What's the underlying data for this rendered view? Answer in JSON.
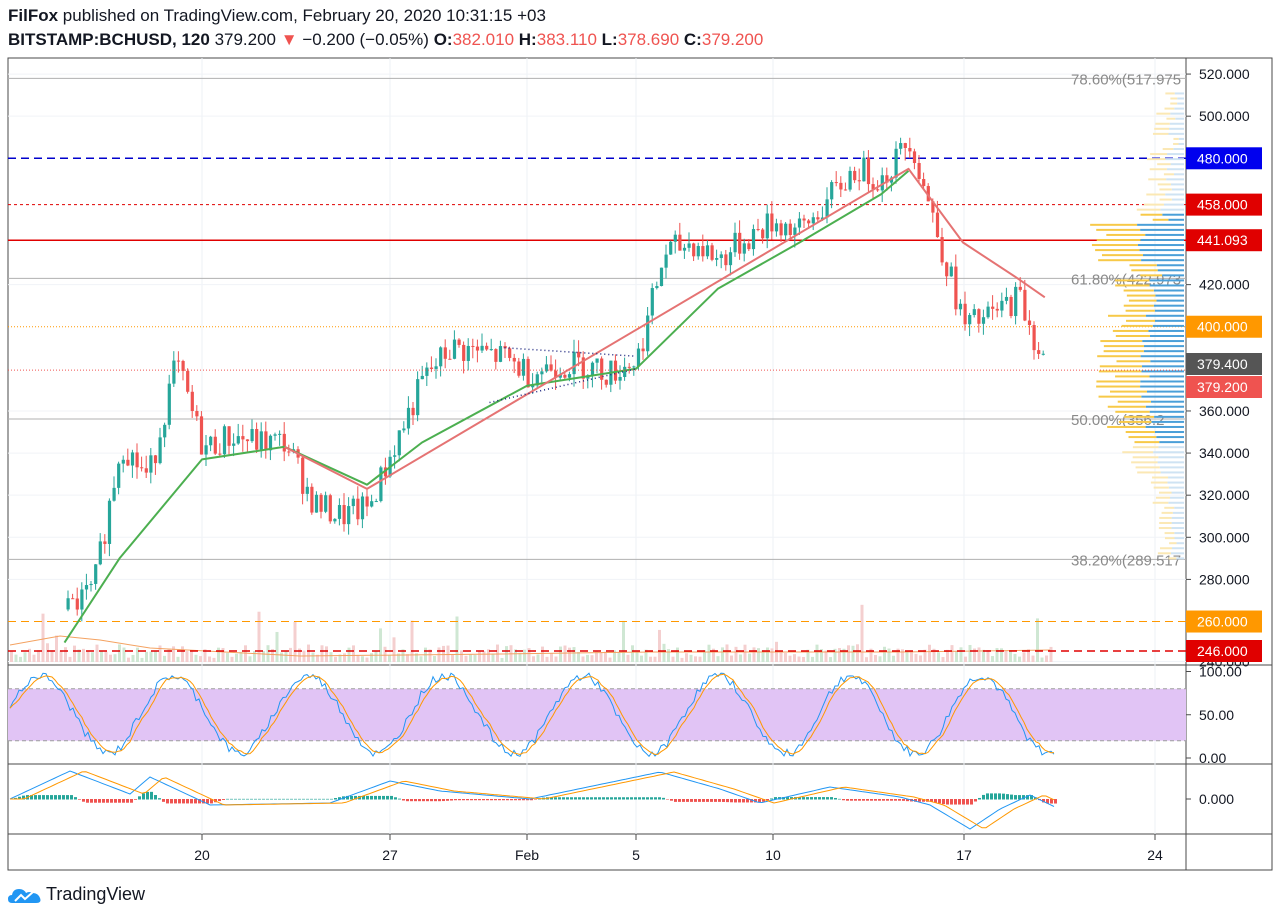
{
  "header": {
    "publisher": "FilFox",
    "published_text": "published on TradingView.com, February 20, 2020 10:31:15 +03",
    "symbol": "BITSTAMP:BCHUSD, 120",
    "last": "379.200",
    "change": "−0.200 (−0.05%)",
    "o_label": "O:",
    "o": "382.010",
    "h_label": "H:",
    "h": "383.110",
    "l_label": "L:",
    "l": "378.690",
    "c_label": "C:",
    "c": "379.200"
  },
  "brand": "TradingView",
  "colors": {
    "up": "#26a69a",
    "down": "#ef5350",
    "ma_green": "#4caf50",
    "ma_red": "#e57373",
    "blue_line": "#0000cc",
    "red_line": "#e00000",
    "orange": "#ff9800",
    "stoch_band": "#e1c4f5"
  },
  "chart_data": [
    {
      "type": "candlestick",
      "title": "BITSTAMP:BCHUSD, 120",
      "y_ticks": [
        "520.000",
        "500.000",
        "480.000",
        "458.000",
        "441.093",
        "420.000",
        "400.000",
        "379.400",
        "379.200",
        "360.000",
        "340.000",
        "320.000",
        "300.000",
        "280.000",
        "260.000",
        "246.000",
        "240.000"
      ],
      "ylim": [
        240,
        525
      ],
      "x_ticks": [
        "20",
        "27",
        "Feb",
        "5",
        "10",
        "17",
        "24"
      ],
      "price_path": [
        {
          "t": "Jan 15",
          "p": 265
        },
        {
          "t": "Jan 16",
          "p": 275
        },
        {
          "t": "Jan 17",
          "p": 345
        },
        {
          "t": "Jan 18",
          "p": 328
        },
        {
          "t": "Jan 19",
          "p": 383
        },
        {
          "t": "Jan 20",
          "p": 342
        },
        {
          "t": "Jan 21",
          "p": 348
        },
        {
          "t": "Jan 22",
          "p": 345
        },
        {
          "t": "Jan 23",
          "p": 345
        },
        {
          "t": "Jan 24",
          "p": 316
        },
        {
          "t": "Jan 25",
          "p": 310
        },
        {
          "t": "Jan 26",
          "p": 314
        },
        {
          "t": "Jan 27",
          "p": 345
        },
        {
          "t": "Jan 28",
          "p": 375
        },
        {
          "t": "Jan 29",
          "p": 390
        },
        {
          "t": "Jan 30",
          "p": 388
        },
        {
          "t": "Jan 31",
          "p": 385
        },
        {
          "t": "Feb 1",
          "p": 378
        },
        {
          "t": "Feb 2",
          "p": 382
        },
        {
          "t": "Feb 3",
          "p": 382
        },
        {
          "t": "Feb 4",
          "p": 378
        },
        {
          "t": "Feb 5",
          "p": 385
        },
        {
          "t": "Feb 6",
          "p": 435
        },
        {
          "t": "Feb 7",
          "p": 440
        },
        {
          "t": "Feb 8",
          "p": 432
        },
        {
          "t": "Feb 9",
          "p": 442
        },
        {
          "t": "Feb 10",
          "p": 450
        },
        {
          "t": "Feb 11",
          "p": 445
        },
        {
          "t": "Feb 12",
          "p": 460
        },
        {
          "t": "Feb 13",
          "p": 475
        },
        {
          "t": "Feb 14",
          "p": 470
        },
        {
          "t": "Feb 15",
          "p": 490
        },
        {
          "t": "Feb 16",
          "p": 445
        },
        {
          "t": "Feb 17",
          "p": 400
        },
        {
          "t": "Feb 18",
          "p": 405
        },
        {
          "t": "Feb 19",
          "p": 415
        },
        {
          "t": "Feb 20",
          "p": 379.2
        }
      ],
      "moving_averages": [
        {
          "color": "green",
          "values": [
            {
              "t": "Jan 15",
              "p": 250
            },
            {
              "t": "Jan 17",
              "p": 290
            },
            {
              "t": "Jan 20",
              "p": 337
            },
            {
              "t": "Jan 23",
              "p": 343
            },
            {
              "t": "Jan 26",
              "p": 325
            },
            {
              "t": "Jan 28",
              "p": 345
            },
            {
              "t": "Feb 1",
              "p": 372
            },
            {
              "t": "Feb 5",
              "p": 380
            },
            {
              "t": "Feb 8",
              "p": 418
            },
            {
              "t": "Feb 11",
              "p": 440
            },
            {
              "t": "Feb 14",
              "p": 463
            },
            {
              "t": "Feb 15",
              "p": 474
            }
          ]
        },
        {
          "color": "red",
          "values": [
            {
              "t": "Jan 23",
              "p": 343
            },
            {
              "t": "Jan 26",
              "p": 323
            },
            {
              "t": "Feb 15",
              "p": 475
            },
            {
              "t": "Feb 17",
              "p": 440
            },
            {
              "t": "Feb 19",
              "p": 423
            },
            {
              "t": "Feb 20",
              "p": 414
            }
          ]
        }
      ],
      "horizontal_levels": [
        {
          "price": 480.0,
          "label": "480.000",
          "style": "dashed",
          "color": "blue"
        },
        {
          "price": 458.0,
          "label": "458.000",
          "style": "dashed",
          "color": "red"
        },
        {
          "price": 441.093,
          "label": "441.093",
          "style": "solid",
          "color": "red"
        },
        {
          "price": 400.0,
          "label": "400.000",
          "style": "dotted",
          "color": "orange"
        },
        {
          "price": 260.0,
          "label": "260.000",
          "style": "dashed",
          "color": "orange"
        },
        {
          "price": 246.0,
          "label": "246.000",
          "style": "dashed",
          "color": "red"
        }
      ],
      "fibonacci": [
        {
          "label": "78.60%(517.975",
          "price": 517.975
        },
        {
          "label": "61.80%(422.973",
          "price": 422.973
        },
        {
          "label": "50.00%(356.2",
          "price": 356.2
        },
        {
          "label": "38.20%(289.517",
          "price": 289.517
        }
      ],
      "current_price_labels": [
        {
          "price": 379.4,
          "label": "379.400"
        },
        {
          "price": 379.2,
          "label": "379.200"
        }
      ],
      "triangle_pattern": {
        "start": "Jan 31",
        "end": "Feb 5",
        "upper": [
          390,
          386
        ],
        "lower": [
          364,
          380
        ]
      },
      "volume_profile": "right-side horizontal histogram, blue/yellow"
    },
    {
      "type": "line",
      "title": "",
      "y_ticks": [
        "100.00",
        "50.00",
        "0.00"
      ],
      "ylim": [
        0,
        100
      ],
      "band": [
        20,
        80
      ],
      "series": [
        {
          "color": "blue"
        },
        {
          "color": "orange"
        }
      ]
    },
    {
      "type": "line",
      "title": "",
      "y_ticks": [
        "0.000"
      ],
      "series": [
        {
          "color": "blue"
        },
        {
          "color": "orange"
        }
      ],
      "histogram": true
    }
  ]
}
